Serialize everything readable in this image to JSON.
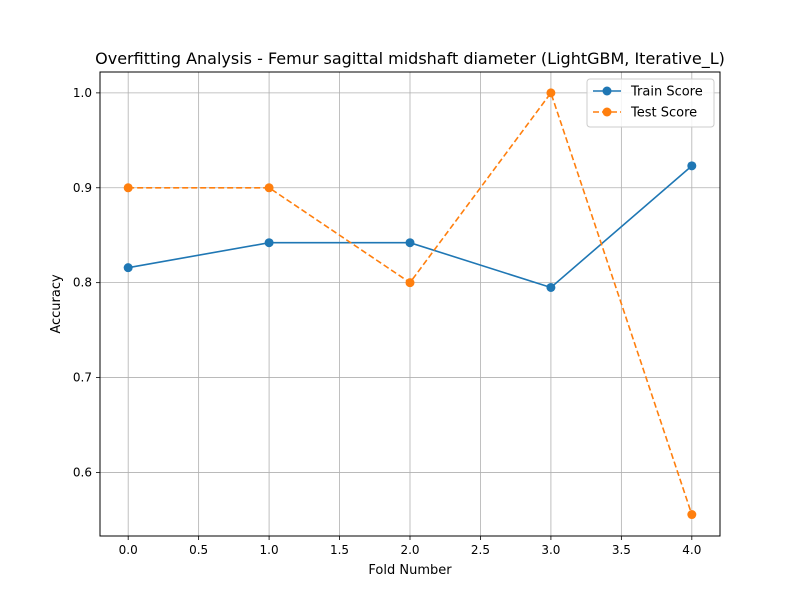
{
  "chart_data": {
    "type": "line",
    "title": "Overfitting Analysis - Femur sagittal midshaft diameter (LightGBM, Iterative_L)",
    "xlabel": "Fold Number",
    "ylabel": "Accuracy",
    "x": [
      0,
      1,
      2,
      3,
      4
    ],
    "xlim": [
      -0.2,
      4.2
    ],
    "ylim": [
      0.533,
      1.022
    ],
    "xticks": [
      0.0,
      0.5,
      1.0,
      1.5,
      2.0,
      2.5,
      3.0,
      3.5,
      4.0
    ],
    "xtick_labels": [
      "0.0",
      "0.5",
      "1.0",
      "1.5",
      "2.0",
      "2.5",
      "3.0",
      "3.5",
      "4.0"
    ],
    "yticks": [
      0.6,
      0.7,
      0.8,
      0.9,
      1.0
    ],
    "ytick_labels": [
      "0.6",
      "0.7",
      "0.8",
      "0.9",
      "1.0"
    ],
    "grid": true,
    "legend_position": "top-right",
    "series": [
      {
        "name": "Train Score",
        "values": [
          0.8158,
          0.8421,
          0.8421,
          0.7949,
          0.9231
        ],
        "color": "#1f77b4",
        "style": "solid",
        "marker": "circle"
      },
      {
        "name": "Test Score",
        "values": [
          0.9,
          0.9,
          0.8,
          1.0,
          0.5556
        ],
        "color": "#ff7f0e",
        "style": "dashed",
        "marker": "circle"
      }
    ]
  }
}
